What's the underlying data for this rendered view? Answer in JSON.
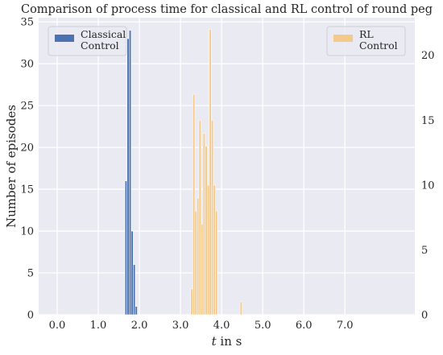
{
  "chart_data": {
    "type": "bar",
    "title": "Comparison of process time for classical and RL control of round peg",
    "xlabel": "t in s",
    "xlabel_italic": "t",
    "xlabel_rest": " in s",
    "ylabel": "Number of episodes",
    "xlim": [
      -0.45,
      8.7
    ],
    "ylim_left": [
      0,
      35.5
    ],
    "ylim_right": [
      0,
      22.9
    ],
    "x_ticks": [
      0.0,
      1.0,
      2.0,
      3.0,
      4.0,
      5.0,
      6.0,
      7.0
    ],
    "x_tick_labels": [
      "0.0",
      "1.0",
      "2.0",
      "3.0",
      "4.0",
      "5.0",
      "6.0",
      "7.0"
    ],
    "y_ticks_left": [
      0,
      5,
      10,
      15,
      20,
      25,
      30,
      35
    ],
    "y_tick_labels_left": [
      "0",
      "5",
      "10",
      "15",
      "20",
      "25",
      "30",
      "35"
    ],
    "y_ticks_right": [
      0,
      5,
      10,
      15,
      20
    ],
    "y_tick_labels_right": [
      "0",
      "5",
      "10",
      "15",
      "20"
    ],
    "grid": true,
    "bar_width": 0.05,
    "series": [
      {
        "name": "Classical Control",
        "legend_lines": [
          "Classical",
          "Control"
        ],
        "axis": "left",
        "color": "#4c72b0",
        "x": [
          1.675,
          1.725,
          1.775,
          1.825,
          1.875,
          1.925,
          1.975,
          2.025
        ],
        "values": [
          16,
          33,
          34,
          10,
          6,
          1,
          0,
          0
        ]
      },
      {
        "name": "RL Control",
        "legend_lines": [
          "RL",
          "Control"
        ],
        "axis": "right",
        "color": "#f5c98a",
        "x": [
          3.275,
          3.325,
          3.375,
          3.425,
          3.475,
          3.525,
          3.575,
          3.625,
          3.675,
          3.725,
          3.775,
          3.825,
          3.875,
          3.925,
          4.475
        ],
        "values": [
          2,
          17,
          8,
          9,
          15,
          7,
          14,
          13,
          10,
          22,
          15,
          10,
          8,
          0,
          1
        ]
      }
    ],
    "legends": [
      {
        "series": 0,
        "placement": "top-left"
      },
      {
        "series": 1,
        "placement": "top-right"
      }
    ]
  }
}
